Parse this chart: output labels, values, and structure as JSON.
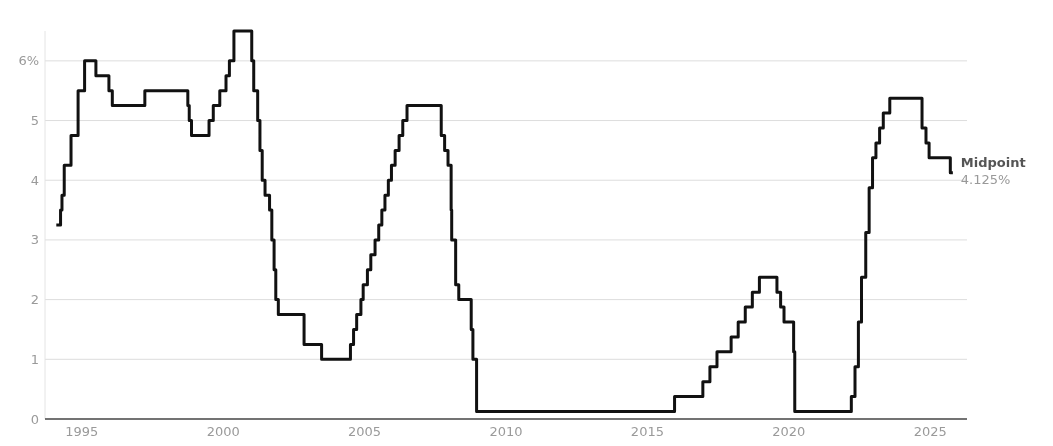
{
  "chart_data": {
    "type": "step",
    "xlim": [
      1993.7,
      2026.3
    ],
    "xticks": [
      1995,
      2000,
      2005,
      2010,
      2015,
      2020,
      2025
    ],
    "ylim": [
      0,
      6.5
    ],
    "yticks": [
      0,
      1,
      2,
      3,
      4,
      5,
      {
        "value": 6,
        "label": "6%"
      }
    ],
    "grid": "y",
    "line_style": "solid",
    "series": [
      {
        "color": "#111111",
        "x": [
          1994.1,
          1994.25,
          1994.3,
          1994.38,
          1994.62,
          1994.87,
          1995.1,
          1995.5,
          1995.96,
          1996.08,
          1997.23,
          1998.75,
          1998.8,
          1998.88,
          1999.5,
          1999.65,
          1999.88,
          2000.1,
          2000.22,
          2000.38,
          2001.01,
          2001.08,
          2001.22,
          2001.3,
          2001.38,
          2001.48,
          2001.64,
          2001.72,
          2001.8,
          2001.86,
          2001.95,
          2002.86,
          2003.48,
          2004.5,
          2004.61,
          2004.72,
          2004.87,
          2004.95,
          2005.1,
          2005.22,
          2005.37,
          2005.5,
          2005.61,
          2005.72,
          2005.84,
          2005.95,
          2006.08,
          2006.22,
          2006.35,
          2006.5,
          2007.71,
          2007.83,
          2007.95,
          2008.06,
          2008.08,
          2008.22,
          2008.33,
          2008.77,
          2008.83,
          2008.96,
          2015.96,
          2016.96,
          2017.21,
          2017.46,
          2017.96,
          2018.21,
          2018.46,
          2018.71,
          2018.96,
          2019.58,
          2019.71,
          2019.83,
          2020.17,
          2020.21,
          2022.21,
          2022.34,
          2022.46,
          2022.57,
          2022.72,
          2022.84,
          2022.96,
          2023.08,
          2023.21,
          2023.34,
          2023.57,
          2024.71,
          2024.85,
          2024.96,
          2025.71,
          2025.8
        ],
        "values": [
          3.25,
          3.5,
          3.75,
          4.25,
          4.75,
          5.5,
          6.0,
          5.75,
          5.5,
          5.25,
          5.5,
          5.25,
          5.0,
          4.75,
          5.0,
          5.25,
          5.5,
          5.75,
          6.0,
          6.5,
          6.0,
          5.5,
          5.0,
          4.5,
          4.0,
          3.75,
          3.5,
          3.0,
          2.5,
          2.0,
          1.75,
          1.25,
          1.0,
          1.25,
          1.5,
          1.75,
          2.0,
          2.25,
          2.5,
          2.75,
          3.0,
          3.25,
          3.5,
          3.75,
          4.0,
          4.25,
          4.5,
          4.75,
          5.0,
          5.25,
          4.75,
          4.5,
          4.25,
          3.5,
          3.0,
          2.25,
          2.0,
          1.5,
          1.0,
          0.125,
          0.375,
          0.625,
          0.875,
          1.125,
          1.375,
          1.625,
          1.875,
          2.125,
          2.375,
          2.125,
          1.875,
          1.625,
          1.125,
          0.125,
          0.375,
          0.875,
          1.625,
          2.375,
          3.125,
          3.875,
          4.375,
          4.625,
          4.875,
          5.125,
          5.375,
          4.875,
          4.625,
          4.375,
          4.125,
          4.125
        ]
      }
    ],
    "annotations": [
      {
        "text": "Midpoint\n4.125%",
        "x": 2025.8,
        "y": 4.125
      }
    ]
  }
}
